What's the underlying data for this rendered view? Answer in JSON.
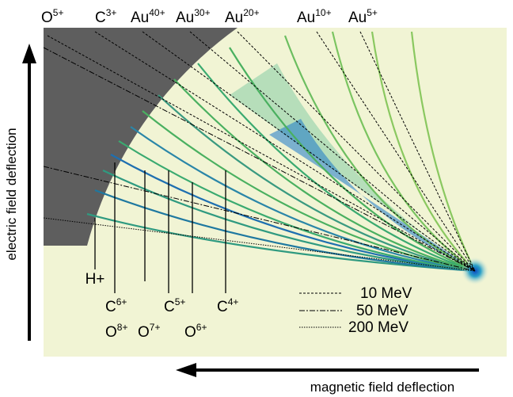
{
  "top_labels": [
    {
      "element": "O",
      "charge": "5+"
    },
    {
      "element": "C",
      "charge": "3+"
    },
    {
      "element": "Au",
      "charge": "40+"
    },
    {
      "element": "Au",
      "charge": "30+"
    },
    {
      "element": "Au",
      "charge": "20+"
    },
    {
      "element": "Au",
      "charge": "10+"
    },
    {
      "element": "Au",
      "charge": "5+"
    }
  ],
  "proton_label": "H+",
  "carbon_labels": [
    {
      "element": "C",
      "charge": "6+"
    },
    {
      "element": "C",
      "charge": "5+"
    },
    {
      "element": "C",
      "charge": "4+"
    }
  ],
  "oxygen_labels": [
    {
      "element": "O",
      "charge": "8+"
    },
    {
      "element": "O",
      "charge": "7+"
    },
    {
      "element": "O",
      "charge": "6+"
    }
  ],
  "legend": [
    "10 MeV",
    "50 MeV",
    "200 MeV"
  ],
  "y_axis_label": "electric  field deflection",
  "x_axis_label": "magnetic field deflection"
}
